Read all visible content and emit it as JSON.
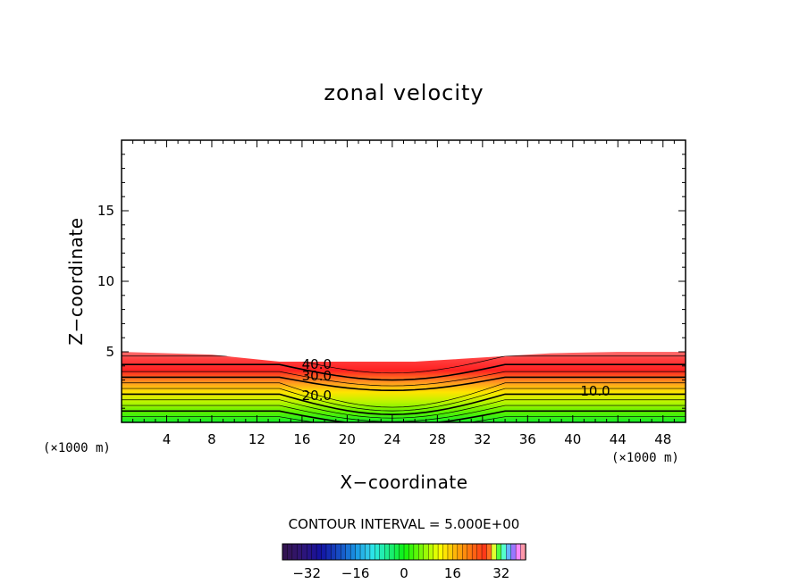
{
  "chart_data": {
    "type": "contour",
    "title": "zonal velocity",
    "xlabel": "X−coordinate",
    "ylabel": "Z−coordinate",
    "x_unit": "(×1000 m)",
    "y_unit": "(×1000 m)",
    "xlim": [
      0,
      50
    ],
    "ylim": [
      0,
      20
    ],
    "x_ticks": [
      4,
      8,
      12,
      16,
      20,
      24,
      28,
      32,
      36,
      40,
      44,
      48
    ],
    "y_ticks": [
      5,
      10,
      15
    ],
    "contour_interval_text": "CONTOUR INTERVAL = 5.000E+00",
    "contour_interval": 5.0,
    "contour_labels": [
      {
        "text": "40.0",
        "x": 17.3,
        "y": 4.1
      },
      {
        "text": "30.0",
        "x": 17.3,
        "y": 3.3
      },
      {
        "text": "20.0",
        "x": 17.3,
        "y": 1.9
      },
      {
        "text": "10.0",
        "x": 42.0,
        "y": 2.2
      }
    ],
    "data_top": {
      "x": [
        0,
        8,
        14,
        16,
        22,
        26,
        30,
        34,
        38,
        44,
        50
      ],
      "z": [
        5.0,
        4.8,
        4.3,
        4.3,
        4.3,
        4.3,
        4.5,
        4.7,
        4.9,
        5.0,
        5.0
      ]
    },
    "colorbar": {
      "range": [
        -40,
        40
      ],
      "tick_values": [
        -32,
        -16,
        0,
        16,
        32
      ],
      "tick_labels": [
        "−32",
        "−16",
        "0",
        "16",
        "32"
      ]
    },
    "colors": {
      "high": "#ff2a2a",
      "mid": "#ffff00",
      "low": "#2aff2a",
      "background": "#ffffff"
    }
  }
}
